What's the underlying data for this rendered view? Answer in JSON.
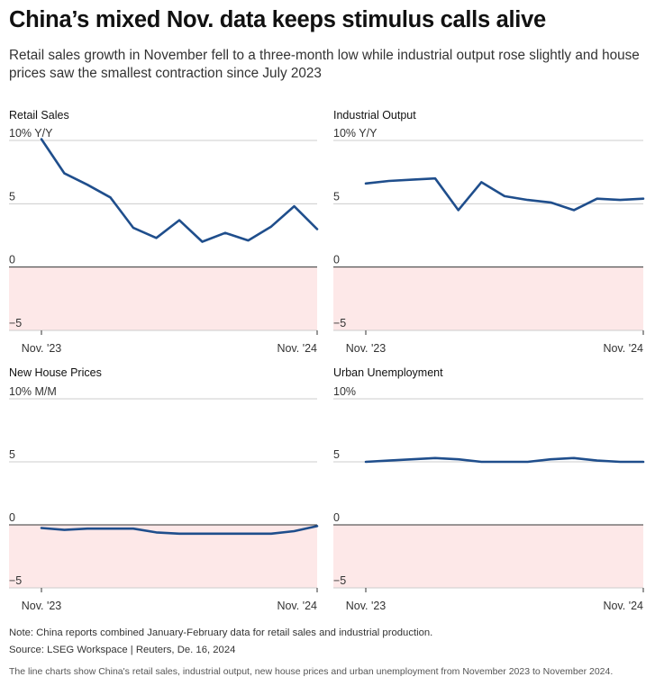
{
  "title": "China’s mixed Nov. data keeps stimulus calls alive",
  "subtitle": "Retail sales growth in November fell to a three-month low while industrial output rose slightly and house prices saw the smallest contraction since July 2023",
  "colors": {
    "line": "#1f4e8c",
    "negative_band": "#fde8e8",
    "grid": "#cccccc",
    "zero_line": "#333333"
  },
  "chart_data": [
    {
      "type": "line",
      "title": "Retail Sales",
      "unit": "Y/Y",
      "ylim": [
        -5,
        10
      ],
      "yticks": [
        -5,
        0,
        5,
        10
      ],
      "ytick_labels": [
        "−5",
        "0",
        "5",
        "10%"
      ],
      "xtick_labels": [
        "Nov. '23",
        "Nov. '24"
      ],
      "values": [
        10.1,
        7.4,
        6.5,
        5.5,
        3.1,
        2.3,
        3.7,
        2.0,
        2.7,
        2.1,
        3.2,
        4.8,
        3.0
      ]
    },
    {
      "type": "line",
      "title": "Industrial Output",
      "unit": "Y/Y",
      "ylim": [
        -5,
        10
      ],
      "yticks": [
        -5,
        0,
        5,
        10
      ],
      "ytick_labels": [
        "−5",
        "0",
        "5",
        "10%"
      ],
      "xtick_labels": [
        "Nov. '23",
        "Nov. '24"
      ],
      "values": [
        6.6,
        6.8,
        6.9,
        7.0,
        4.5,
        6.7,
        5.6,
        5.3,
        5.1,
        4.5,
        5.4,
        5.3,
        5.4
      ]
    },
    {
      "type": "line",
      "title": "New House Prices",
      "unit": "M/M",
      "ylim": [
        -5,
        10
      ],
      "yticks": [
        -5,
        0,
        5,
        10
      ],
      "ytick_labels": [
        "−5",
        "0",
        "5",
        "10%"
      ],
      "xtick_labels": [
        "Nov. '23",
        "Nov. '24"
      ],
      "values": [
        -0.25,
        -0.4,
        -0.3,
        -0.3,
        -0.3,
        -0.6,
        -0.7,
        -0.7,
        -0.7,
        -0.7,
        -0.7,
        -0.5,
        -0.1
      ]
    },
    {
      "type": "line",
      "title": "Urban Unemployment",
      "unit": "",
      "ylim": [
        -5,
        10
      ],
      "yticks": [
        -5,
        0,
        5,
        10
      ],
      "ytick_labels": [
        "−5",
        "0",
        "5",
        "10%"
      ],
      "xtick_labels": [
        "Nov. '23",
        "Nov. '24"
      ],
      "values": [
        5.0,
        5.1,
        5.2,
        5.3,
        5.2,
        5.0,
        5.0,
        5.0,
        5.2,
        5.3,
        5.1,
        5.0,
        5.0
      ]
    }
  ],
  "footer": {
    "note": "Note: China reports combined January-February data for retail sales and industrial production.",
    "source": "Source: LSEG Workspace | Reuters, De. 16, 2024",
    "description": "The line charts show China's retail sales, industrial output, new house prices and urban unemployment from November 2023 to November 2024."
  }
}
